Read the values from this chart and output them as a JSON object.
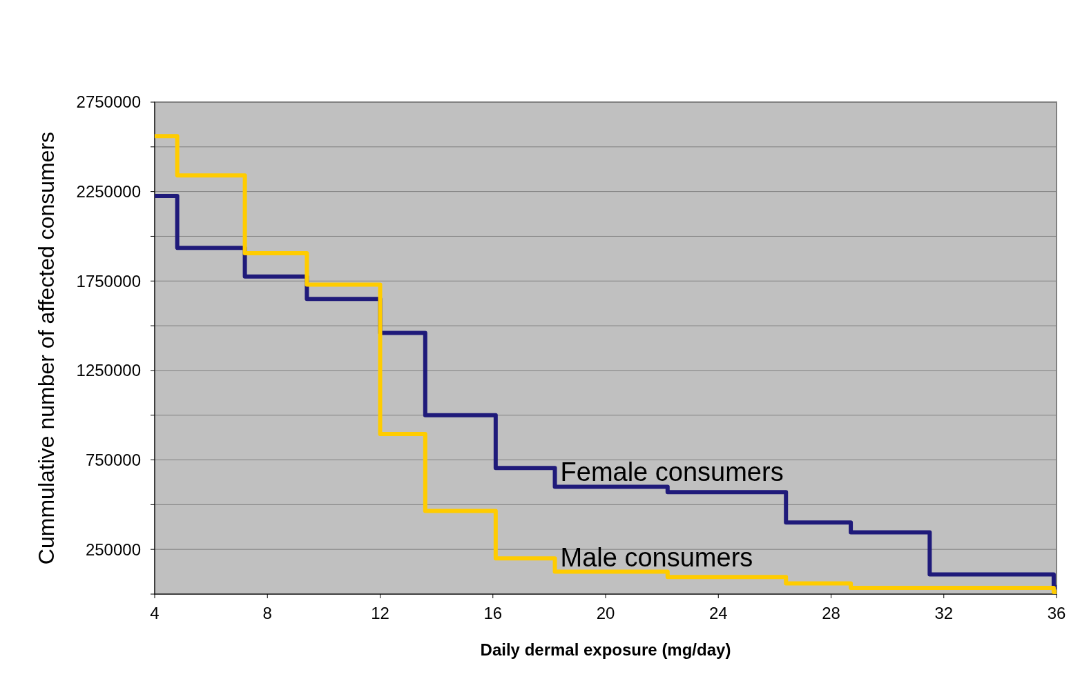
{
  "chart_data": {
    "type": "step",
    "xlabel": "Daily dermal exposure (mg/day)",
    "ylabel": "Cummulative number of affected consumers",
    "x": [
      4,
      4.8,
      7.2,
      9.4,
      12,
      13.6,
      16.1,
      18.2,
      22.2,
      26.4,
      28.7,
      31.5,
      35.9,
      36
    ],
    "series": [
      {
        "name": "Female consumers",
        "color": "#1f1a7a",
        "values": [
          2225000,
          1935000,
          1775000,
          1650000,
          1460000,
          1000000,
          705000,
          600000,
          570000,
          400000,
          345000,
          110000,
          40000,
          40000
        ]
      },
      {
        "name": "Male consumers",
        "color": "#ffcc00",
        "values": [
          2560000,
          2340000,
          1905000,
          1730000,
          895000,
          465000,
          200000,
          125000,
          95000,
          60000,
          35000,
          35000,
          12000,
          12000
        ]
      }
    ],
    "xlim": [
      4,
      36
    ],
    "xticks": [
      4,
      8,
      12,
      16,
      20,
      24,
      28,
      32,
      36
    ],
    "ylim": [
      0,
      2750000
    ],
    "yticks": [
      {
        "value": 0,
        "label": null
      },
      250000,
      {
        "value": 500000,
        "label": null
      },
      750000,
      {
        "value": 1000000,
        "label": null
      },
      1250000,
      {
        "value": 1500000,
        "label": null
      },
      1750000,
      {
        "value": 2000000,
        "label": null
      },
      2250000,
      {
        "value": 2500000,
        "label": null
      },
      2750000
    ],
    "grid": "y",
    "line_style": "solid"
  }
}
